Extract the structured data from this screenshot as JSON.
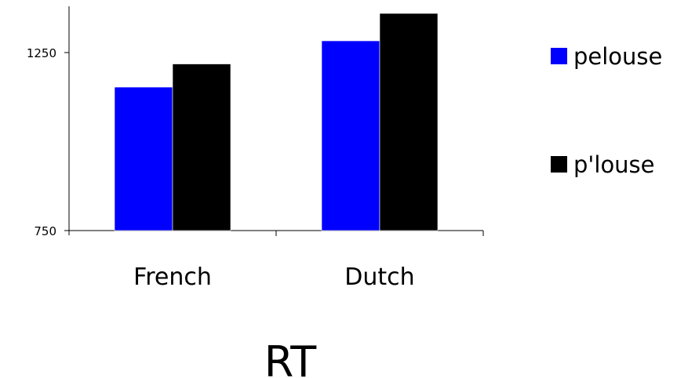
{
  "chart_data": {
    "type": "bar",
    "title": "RT",
    "xlabel": "",
    "ylabel": "",
    "categories": [
      "French",
      "Dutch"
    ],
    "series": [
      {
        "name": "pelouse",
        "color": "#0000ff",
        "values": [
          1153,
          1283
        ]
      },
      {
        "name": "p'louse",
        "color": "#000000",
        "values": [
          1218,
          1360
        ]
      }
    ],
    "ylim": [
      750,
      1380
    ],
    "yticks": [
      750,
      1250
    ],
    "grid": false,
    "legend_position": "right"
  }
}
